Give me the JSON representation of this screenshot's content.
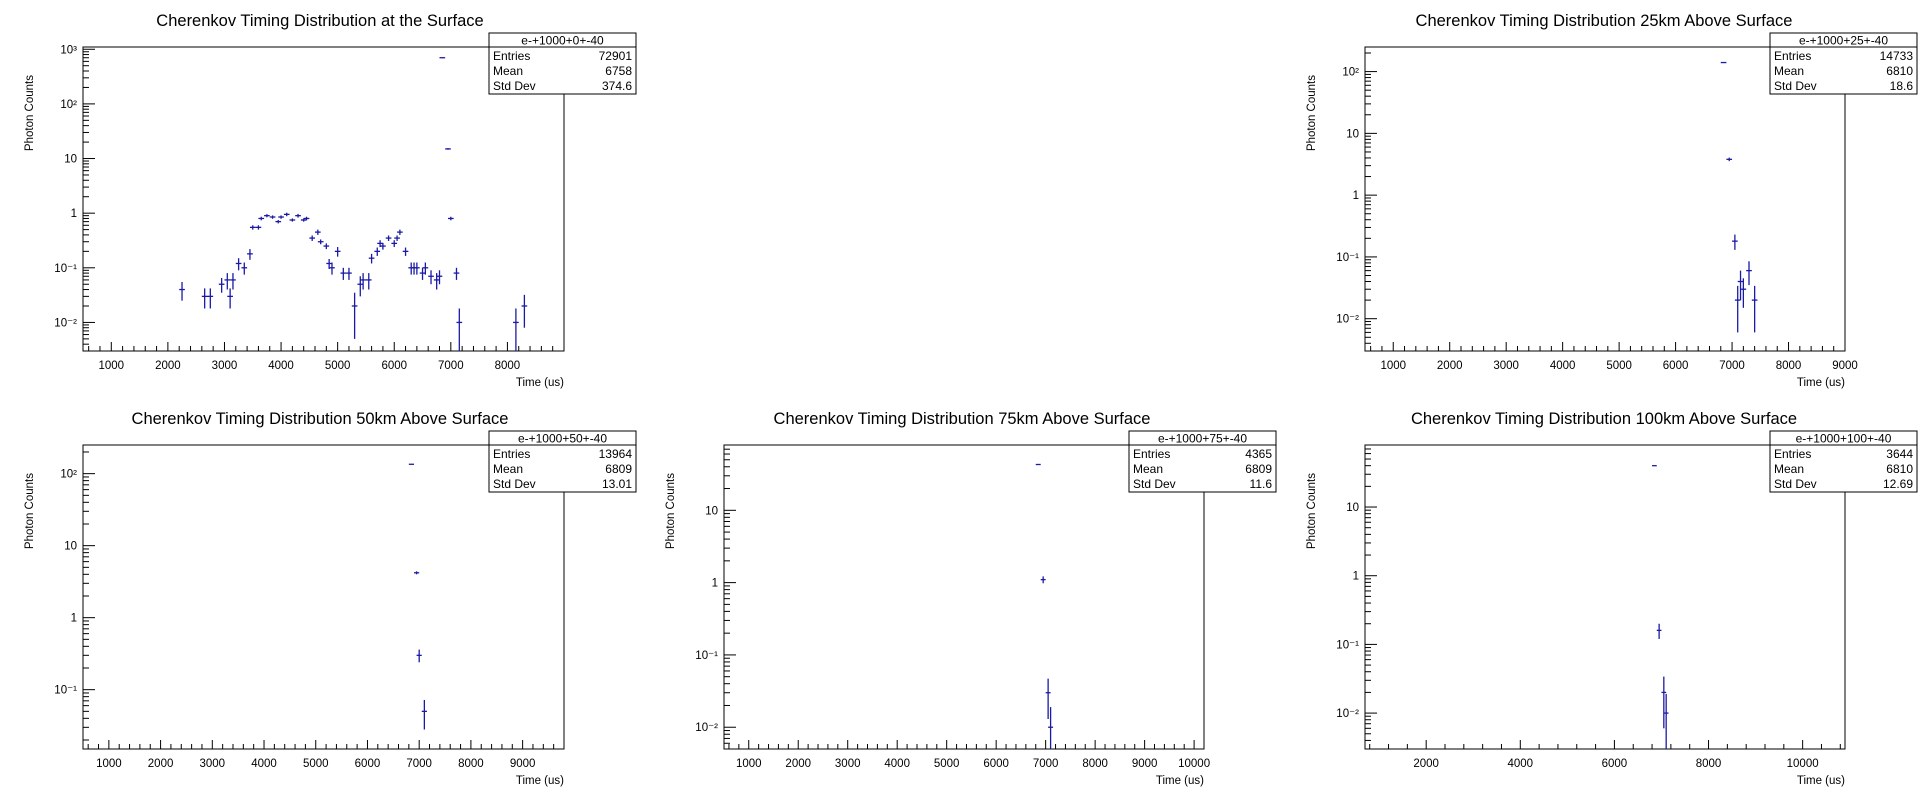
{
  "chart_data": [
    {
      "type": "scatter",
      "title": "Cherenkov Timing Distribution at the Surface",
      "xlabel": "Time (us)",
      "ylabel": "Photon Counts",
      "xlim": [
        500,
        9000
      ],
      "ylim": [
        0.003,
        1100
      ],
      "yscale": "log",
      "xticks": [
        1000,
        2000,
        3000,
        4000,
        5000,
        6000,
        7000,
        8000
      ],
      "yticks": [
        {
          "v": 0.01,
          "label": "10⁻²"
        },
        {
          "v": 0.1,
          "label": "10⁻¹"
        },
        {
          "v": 1,
          "label": "1"
        },
        {
          "v": 10,
          "label": "10"
        },
        {
          "v": 100,
          "label": "10²"
        },
        {
          "v": 1000,
          "label": "10³"
        }
      ],
      "stats": {
        "name": "e-+1000+0+-40",
        "entries": "72901",
        "mean": "6758",
        "std_dev": "374.6"
      },
      "bin_width": 100,
      "points": [
        [
          2250,
          0.04,
          0.015
        ],
        [
          2650,
          0.03,
          0.012
        ],
        [
          2750,
          0.03,
          0.012
        ],
        [
          2950,
          0.05,
          0.015
        ],
        [
          3050,
          0.06,
          0.02
        ],
        [
          3100,
          0.03,
          0.012
        ],
        [
          3150,
          0.06,
          0.02
        ],
        [
          3250,
          0.12,
          0.03
        ],
        [
          3350,
          0.1,
          0.025
        ],
        [
          3450,
          0.18,
          0.04
        ],
        [
          3500,
          0.55,
          0.05
        ],
        [
          3600,
          0.55,
          0.05
        ],
        [
          3650,
          0.8,
          0.06
        ],
        [
          3750,
          0.9,
          0.06
        ],
        [
          3850,
          0.85,
          0.06
        ],
        [
          3950,
          0.7,
          0.05
        ],
        [
          4000,
          0.85,
          0.06
        ],
        [
          4100,
          0.95,
          0.07
        ],
        [
          4200,
          0.75,
          0.05
        ],
        [
          4300,
          0.9,
          0.07
        ],
        [
          4400,
          0.75,
          0.05
        ],
        [
          4450,
          0.8,
          0.06
        ],
        [
          4550,
          0.35,
          0.04
        ],
        [
          4650,
          0.45,
          0.05
        ],
        [
          4700,
          0.3,
          0.03
        ],
        [
          4800,
          0.25,
          0.03
        ],
        [
          4850,
          0.12,
          0.025
        ],
        [
          4900,
          0.1,
          0.025
        ],
        [
          5000,
          0.2,
          0.04
        ],
        [
          5100,
          0.08,
          0.02
        ],
        [
          5200,
          0.08,
          0.02
        ],
        [
          5300,
          0.02,
          0.015
        ],
        [
          5400,
          0.05,
          0.02
        ],
        [
          5450,
          0.06,
          0.02
        ],
        [
          5550,
          0.06,
          0.02
        ],
        [
          5600,
          0.15,
          0.03
        ],
        [
          5700,
          0.2,
          0.035
        ],
        [
          5750,
          0.28,
          0.04
        ],
        [
          5800,
          0.25,
          0.035
        ],
        [
          5900,
          0.35,
          0.04
        ],
        [
          6000,
          0.28,
          0.04
        ],
        [
          6050,
          0.35,
          0.04
        ],
        [
          6100,
          0.45,
          0.05
        ],
        [
          6200,
          0.2,
          0.035
        ],
        [
          6300,
          0.1,
          0.025
        ],
        [
          6350,
          0.1,
          0.025
        ],
        [
          6400,
          0.1,
          0.025
        ],
        [
          6500,
          0.08,
          0.02
        ],
        [
          6550,
          0.1,
          0.025
        ],
        [
          6650,
          0.07,
          0.02
        ],
        [
          6750,
          0.06,
          0.02
        ],
        [
          6800,
          0.07,
          0.02
        ],
        [
          6850,
          700,
          0
        ],
        [
          6950,
          15,
          0.5
        ],
        [
          7000,
          0.8,
          0.06
        ],
        [
          7100,
          0.08,
          0.02
        ],
        [
          7150,
          0.01,
          0.008
        ],
        [
          8150,
          0.01,
          0.008
        ],
        [
          8300,
          0.02,
          0.012
        ]
      ]
    },
    {
      "type": "scatter",
      "title": "Cherenkov Timing Distribution 25km Above Surface",
      "xlabel": "Time (us)",
      "ylabel": "Photon Counts",
      "xlim": [
        500,
        9000
      ],
      "ylim": [
        0.003,
        250
      ],
      "yscale": "log",
      "xticks": [
        1000,
        2000,
        3000,
        4000,
        5000,
        6000,
        7000,
        8000,
        9000
      ],
      "yticks": [
        {
          "v": 0.01,
          "label": "10⁻²"
        },
        {
          "v": 0.1,
          "label": "10⁻¹"
        },
        {
          "v": 1,
          "label": "1"
        },
        {
          "v": 10,
          "label": "10"
        },
        {
          "v": 100,
          "label": "10²"
        }
      ],
      "stats": {
        "name": "e-+1000+25+-40",
        "entries": "14733",
        "mean": "6810",
        "std_dev": "18.6"
      },
      "bin_width": 100,
      "points": [
        [
          6850,
          140,
          0
        ],
        [
          6950,
          3.8,
          0.25
        ],
        [
          7050,
          0.18,
          0.05
        ],
        [
          7100,
          0.02,
          0.014
        ],
        [
          7150,
          0.04,
          0.02
        ],
        [
          7200,
          0.03,
          0.015
        ],
        [
          7300,
          0.06,
          0.025
        ],
        [
          7400,
          0.02,
          0.014
        ]
      ]
    },
    {
      "type": "scatter",
      "title": "Cherenkov Timing Distribution 50km Above Surface",
      "xlabel": "Time (us)",
      "ylabel": "Photon Counts",
      "xlim": [
        500,
        9800
      ],
      "ylim": [
        0.015,
        250
      ],
      "yscale": "log",
      "xticks": [
        1000,
        2000,
        3000,
        4000,
        5000,
        6000,
        7000,
        8000,
        9000
      ],
      "yticks": [
        {
          "v": 0.1,
          "label": "10⁻¹"
        },
        {
          "v": 1,
          "label": "1"
        },
        {
          "v": 10,
          "label": "10"
        },
        {
          "v": 100,
          "label": "10²"
        }
      ],
      "stats": {
        "name": "e-+1000+50+-40",
        "entries": "13964",
        "mean": "6809",
        "std_dev": "13.01"
      },
      "bin_width": 100,
      "points": [
        [
          6850,
          135,
          0
        ],
        [
          6950,
          4.2,
          0.2
        ],
        [
          7000,
          0.3,
          0.06
        ],
        [
          7100,
          0.05,
          0.022
        ]
      ]
    },
    {
      "type": "scatter",
      "title": "Cherenkov Timing Distribution 75km Above Surface",
      "xlabel": "Time (us)",
      "ylabel": "Photon Counts",
      "xlim": [
        500,
        10200
      ],
      "ylim": [
        0.005,
        80
      ],
      "yscale": "log",
      "xticks": [
        1000,
        2000,
        3000,
        4000,
        5000,
        6000,
        7000,
        8000,
        9000,
        10000
      ],
      "yticks": [
        {
          "v": 0.01,
          "label": "10⁻²"
        },
        {
          "v": 0.1,
          "label": "10⁻¹"
        },
        {
          "v": 1,
          "label": "1"
        },
        {
          "v": 10,
          "label": "10"
        }
      ],
      "stats": {
        "name": "e-+1000+75+-40",
        "entries": "4365",
        "mean": "6809",
        "std_dev": "11.6"
      },
      "bin_width": 100,
      "points": [
        [
          6850,
          43,
          0
        ],
        [
          6950,
          1.1,
          0.12
        ],
        [
          7050,
          0.03,
          0.017
        ],
        [
          7100,
          0.01,
          0.009
        ]
      ]
    },
    {
      "type": "scatter",
      "title": "Cherenkov Timing Distribution 100km Above Surface",
      "xlabel": "Time (us)",
      "ylabel": "Photon Counts",
      "xlim": [
        700,
        10900
      ],
      "ylim": [
        0.003,
        80
      ],
      "yscale": "log",
      "xticks": [
        2000,
        4000,
        6000,
        8000,
        10000
      ],
      "yticks": [
        {
          "v": 0.01,
          "label": "10⁻²"
        },
        {
          "v": 0.1,
          "label": "10⁻¹"
        },
        {
          "v": 1,
          "label": "1"
        },
        {
          "v": 10,
          "label": "10"
        }
      ],
      "stats": {
        "name": "e-+1000+100+-40",
        "entries": "3644",
        "mean": "6810",
        "std_dev": "12.69"
      },
      "bin_width": 100,
      "points": [
        [
          6850,
          40,
          0
        ],
        [
          6950,
          0.16,
          0.04
        ],
        [
          7050,
          0.02,
          0.014
        ],
        [
          7100,
          0.01,
          0.009
        ]
      ]
    }
  ],
  "stats_labels": {
    "entries": "Entries",
    "mean": "Mean",
    "std_dev": "Std Dev"
  },
  "colors": {
    "marker": "#1a1aa6",
    "frame": "#000000",
    "background": "#ffffff"
  }
}
